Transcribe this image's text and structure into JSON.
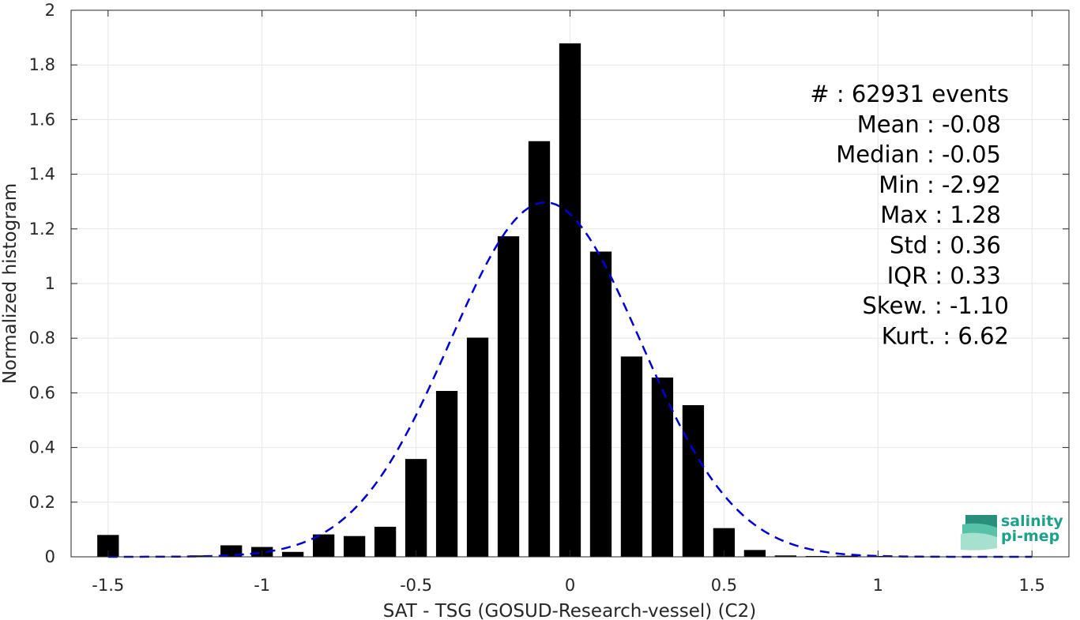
{
  "chart_data": {
    "type": "bar",
    "xlabel": "SAT - TSG (GOSUD-Research-vessel) (C2)",
    "ylabel": "Normalized histogram",
    "xlim": [
      -1.62,
      1.62
    ],
    "ylim": [
      0,
      2
    ],
    "xticks": [
      -1.5,
      -1,
      -0.5,
      0,
      0.5,
      1,
      1.5
    ],
    "xtick_labels": [
      "-1.5",
      "-1",
      "-0.5",
      "0",
      "0.5",
      "1",
      "1.5"
    ],
    "yticks": [
      0,
      0.2,
      0.4,
      0.6,
      0.8,
      1,
      1.2,
      1.4,
      1.6,
      1.8,
      2
    ],
    "ytick_labels": [
      "0",
      "0.2",
      "0.4",
      "0.6",
      "0.8",
      "1",
      "1.2",
      "1.4",
      "1.6",
      "1.8",
      "2"
    ],
    "grid": true,
    "bar_width": 0.07,
    "bar_color": "#000000",
    "bars": {
      "x": [
        -1.5,
        -1.4,
        -1.3,
        -1.2,
        -1.1,
        -1.0,
        -0.9,
        -0.8,
        -0.7,
        -0.6,
        -0.5,
        -0.4,
        -0.3,
        -0.2,
        -0.1,
        0.0,
        0.1,
        0.2,
        0.3,
        0.4,
        0.5,
        0.6,
        0.7,
        0.8,
        0.9,
        1.0
      ],
      "values": [
        0.08,
        0.0,
        0.0,
        0.005,
        0.042,
        0.036,
        0.018,
        0.082,
        0.076,
        0.11,
        0.358,
        0.607,
        0.802,
        1.173,
        1.521,
        1.879,
        1.117,
        0.733,
        0.656,
        0.555,
        0.105,
        0.025,
        0.005,
        0.003,
        0.004,
        0.003
      ]
    },
    "fit_curve": {
      "style": "dashed",
      "color": "#0000dd",
      "mean": -0.08,
      "std": 0.31,
      "peak": 1.297,
      "x_range": [
        -1.5,
        1.5
      ]
    },
    "stats": [
      "#  : 62931 events",
      "Mean : -0.08",
      "Median : -0.05",
      "Min : -2.92",
      "Max : 1.28",
      "Std : 0.36",
      "IQR : 0.33",
      "Skew. : -1.10",
      "Kurt. : 6.62"
    ]
  },
  "logo": {
    "line1": "salinity",
    "line2": "pi-mep",
    "color": "#1aa38a"
  }
}
